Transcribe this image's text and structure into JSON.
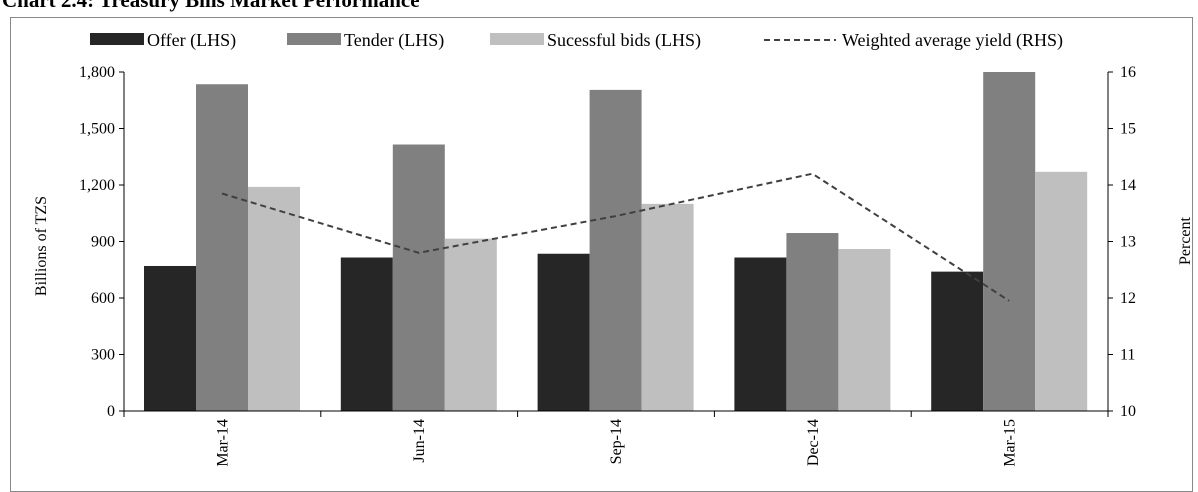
{
  "chart_data": {
    "type": "bar",
    "title": "Chart 2.4: Treasury Bills Market Performance",
    "categories": [
      "Mar-14",
      "Jun-14",
      "Sep-14",
      "Dec-14",
      "Mar-15"
    ],
    "series": [
      {
        "name": "Offer (LHS)",
        "kind": "bar",
        "axis": "left",
        "color": "#262626",
        "values": [
          770,
          815,
          835,
          815,
          740
        ]
      },
      {
        "name": "Tender (LHS)",
        "kind": "bar",
        "axis": "left",
        "color": "#808080",
        "values": [
          1735,
          1415,
          1705,
          945,
          1810
        ]
      },
      {
        "name": "Sucessful bids (LHS)",
        "kind": "bar",
        "axis": "left",
        "color": "#bfbfbf",
        "values": [
          1190,
          915,
          1100,
          860,
          1270
        ]
      },
      {
        "name": "Weighted average yield (RHS)",
        "kind": "line",
        "axis": "right",
        "color": "#404040",
        "dash": true,
        "values": [
          13.85,
          12.8,
          13.45,
          14.2,
          11.95
        ]
      }
    ],
    "ylabel": "Billions  of TZS",
    "y2label": "Percent",
    "ylim": [
      0,
      1800
    ],
    "y2lim": [
      10,
      16
    ],
    "yticks": [
      "0",
      "300",
      "600",
      "900",
      "1,200",
      "1,500",
      "1,800"
    ],
    "y2ticks": [
      "10",
      "11",
      "12",
      "13",
      "14",
      "15",
      "16"
    ],
    "grid": false,
    "legend_position": "top"
  }
}
